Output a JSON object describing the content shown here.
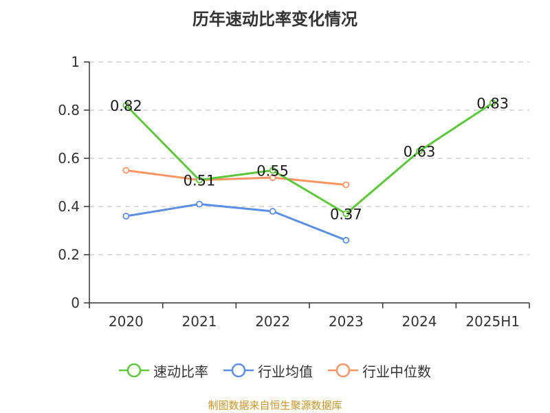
{
  "title": "历年速动比率变化情况",
  "source": "制图数据来自恒生聚源数据库",
  "chart_data": {
    "type": "line",
    "categories": [
      "2020",
      "2021",
      "2022",
      "2023",
      "2024",
      "2025H1"
    ],
    "ylim": [
      0,
      1
    ],
    "yticks": [
      "0",
      "0.2",
      "0.4",
      "0.6",
      "0.8",
      "1"
    ],
    "grid": true,
    "legend_position": "bottom",
    "series": [
      {
        "name": "速动比率",
        "color": "#5cc73a",
        "values": [
          0.82,
          0.51,
          0.55,
          0.37,
          0.63,
          0.83
        ],
        "labels": [
          "0.82",
          "0.51",
          "0.55",
          "0.37",
          "0.63",
          "0.83"
        ]
      },
      {
        "name": "行业均值",
        "color": "#5b8ee6",
        "values": [
          0.36,
          0.41,
          0.38,
          0.26,
          null,
          null
        ]
      },
      {
        "name": "行业中位数",
        "color": "#fb9461",
        "values": [
          0.55,
          0.51,
          0.52,
          0.49,
          null,
          null
        ]
      }
    ]
  }
}
